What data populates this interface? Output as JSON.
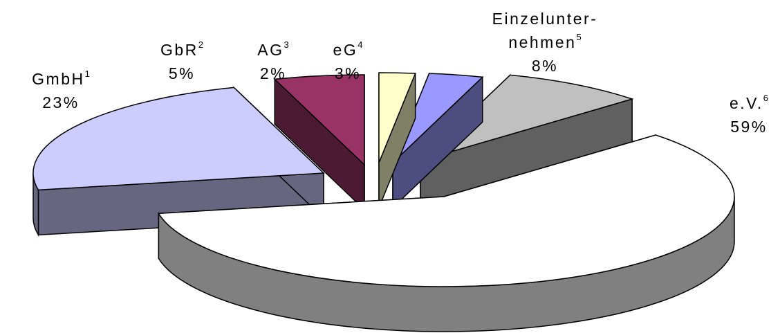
{
  "chart_data": {
    "type": "pie",
    "title": "",
    "style": "exploded-3d",
    "slices": [
      {
        "name_lines": [
          "Einzelunter-",
          "nehmen"
        ],
        "footnote": "5",
        "value": 8,
        "value_label": "8%",
        "top_color": "#c0c0c0",
        "side_color": "#606060"
      },
      {
        "name_lines": [
          "e.V."
        ],
        "footnote": "6",
        "value": 59,
        "value_label": "59%",
        "top_color": "#ffffff",
        "side_color": "#808080"
      },
      {
        "name_lines": [
          "GmbH"
        ],
        "footnote": "1",
        "value": 23,
        "value_label": "23%",
        "top_color": "#ccccff",
        "side_color": "#666680"
      },
      {
        "name_lines": [
          "GbR"
        ],
        "footnote": "2",
        "value": 5,
        "value_label": "5%",
        "top_color": "#993366",
        "side_color": "#4d1a33"
      },
      {
        "name_lines": [
          "AG"
        ],
        "footnote": "3",
        "value": 2,
        "value_label": "2%",
        "top_color": "#ffffcc",
        "side_color": "#808066"
      },
      {
        "name_lines": [
          "eG"
        ],
        "footnote": "4",
        "value": 3,
        "value_label": "3%",
        "top_color": "#9999ff",
        "side_color": "#4d4d80"
      }
    ]
  }
}
